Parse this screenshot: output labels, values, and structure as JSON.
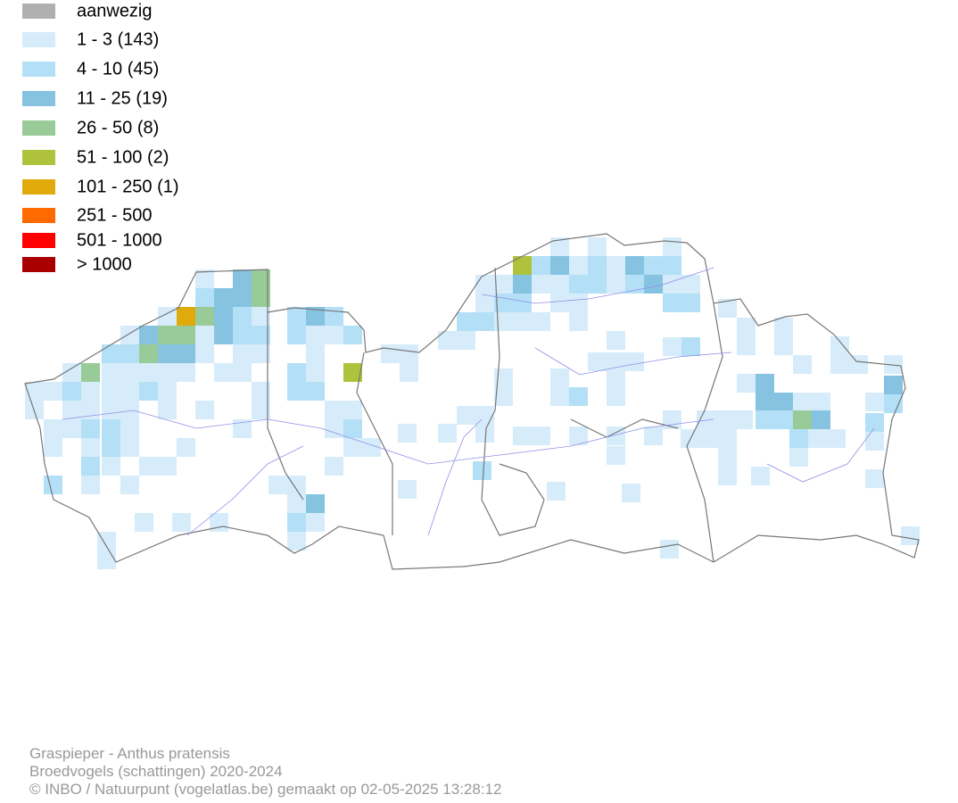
{
  "legend": {
    "items": [
      {
        "label": "aanwezig",
        "color": "#b0b0b0"
      },
      {
        "label": "1 - 3 (143)",
        "color": "#d6ecfa"
      },
      {
        "label": "4 - 10 (45)",
        "color": "#b3e0f7"
      },
      {
        "label": "11 - 25 (19)",
        "color": "#86c3e1"
      },
      {
        "label": "26 - 50 (8)",
        "color": "#98cb98"
      },
      {
        "label": "51 - 100 (2)",
        "color": "#afc23c"
      },
      {
        "label": "101 - 250 (1)",
        "color": "#e0aa0a"
      },
      {
        "label": "251 - 500",
        "color": "#ff6a00"
      },
      {
        "label": "501 - 1000",
        "color": "#ff0000"
      },
      {
        "label": "> 1000",
        "color": "#a80000"
      }
    ]
  },
  "footer": {
    "lines": [
      "Graspieper - Anthus pratensis",
      "Broedvogels (schattingen) 2020-2024",
      "© INBO / Natuurpunt (vogelatlas.be) gemaakt op 02-05-2025 13:28:12"
    ]
  }
}
